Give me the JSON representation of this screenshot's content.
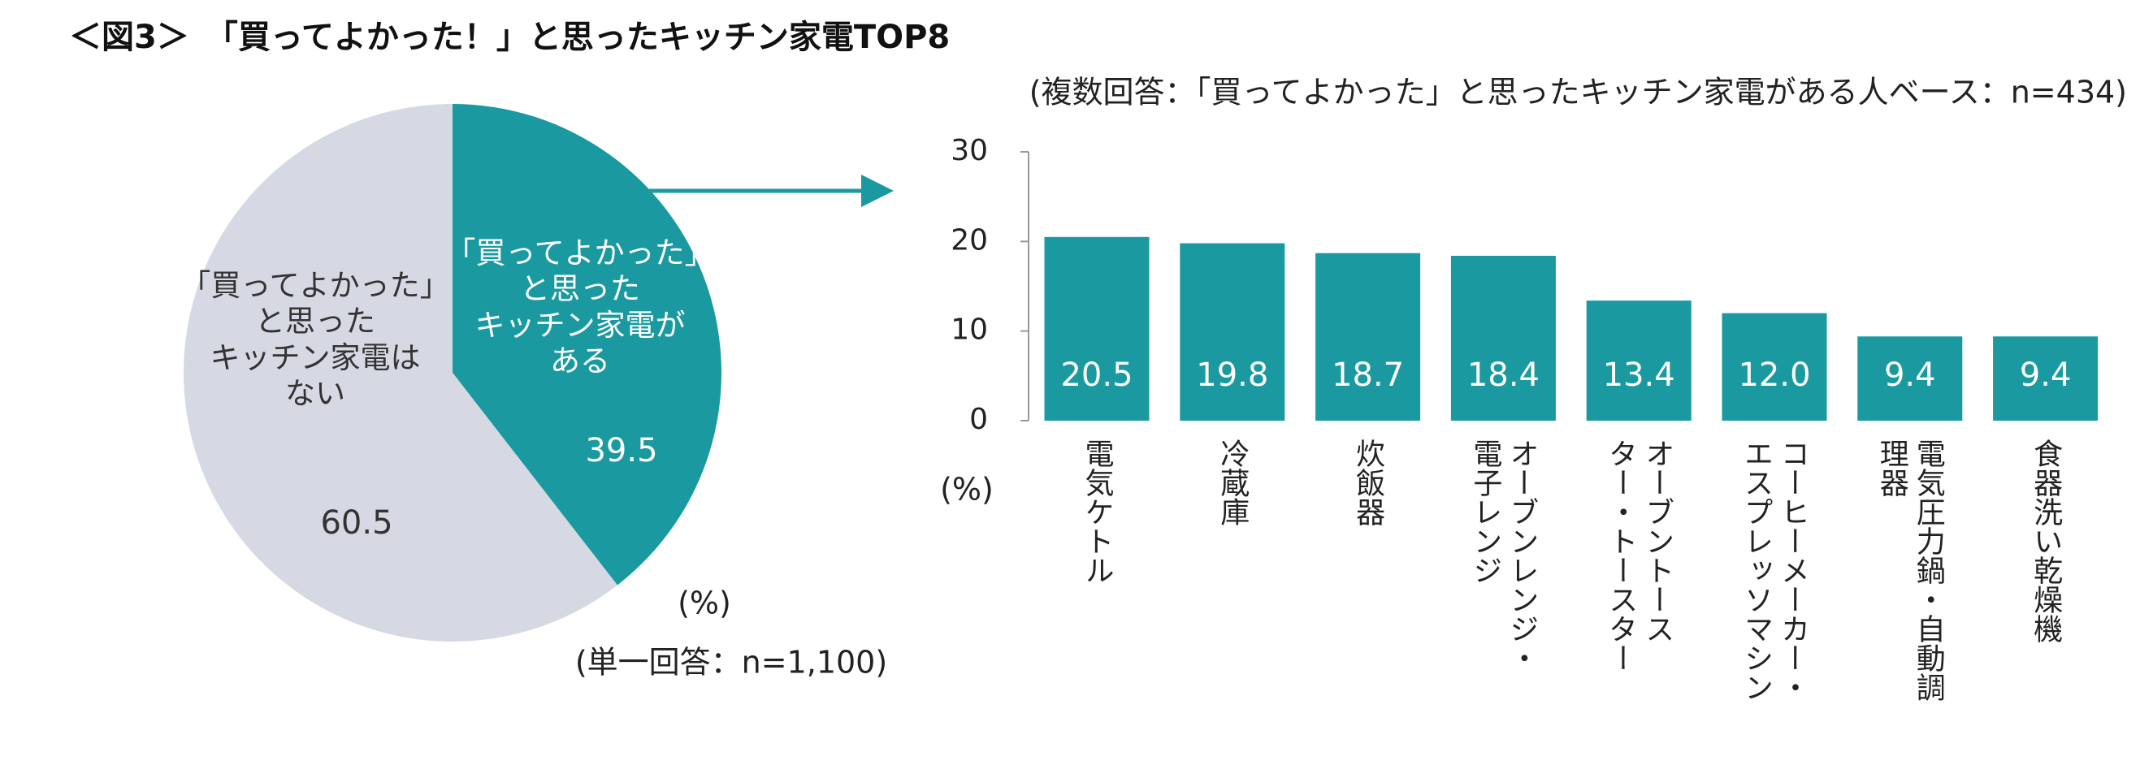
{
  "title": "＜図3＞　「買ってよかった！」と思ったキッチン家電TOP8",
  "chart_data": [
    {
      "type": "pie",
      "categories": [
        "「買ってよかった」\nと思った\nキッチン家電が\nある",
        "「買ってよかった」\nと思った\nキッチン家電は\nない"
      ],
      "values": [
        39.5,
        60.5
      ],
      "colors": [
        "#1a9aa0",
        "#d6d9e3"
      ],
      "unit_label": "(%)",
      "note": "(単一回答：n=1,100)"
    },
    {
      "type": "bar",
      "subtitle": "(複数回答：「買ってよかった」と思ったキッチン家電がある人ベース：n=434)",
      "y_unit": "(%)",
      "categories": [
        "電気ケトル",
        "冷蔵庫",
        "炊飯器",
        "オーブンレンジ・\n電子レンジ",
        "オーブントース\nター・トースター",
        "コーヒーメーカー・\nエスプレッソマシン",
        "電気圧力鍋・自動調\n理器",
        "食器洗い乾燥機"
      ],
      "values": [
        20.5,
        19.8,
        18.7,
        18.4,
        13.4,
        12.0,
        9.4,
        9.4
      ],
      "value_labels": [
        "20.5",
        "19.8",
        "18.7",
        "18.4",
        "13.4",
        "12.0",
        "9.4",
        "9.4"
      ],
      "color": "#1a9aa0",
      "ylim": [
        0,
        30
      ],
      "yticks": [
        0,
        10,
        20,
        30
      ],
      "grid": false
    }
  ]
}
